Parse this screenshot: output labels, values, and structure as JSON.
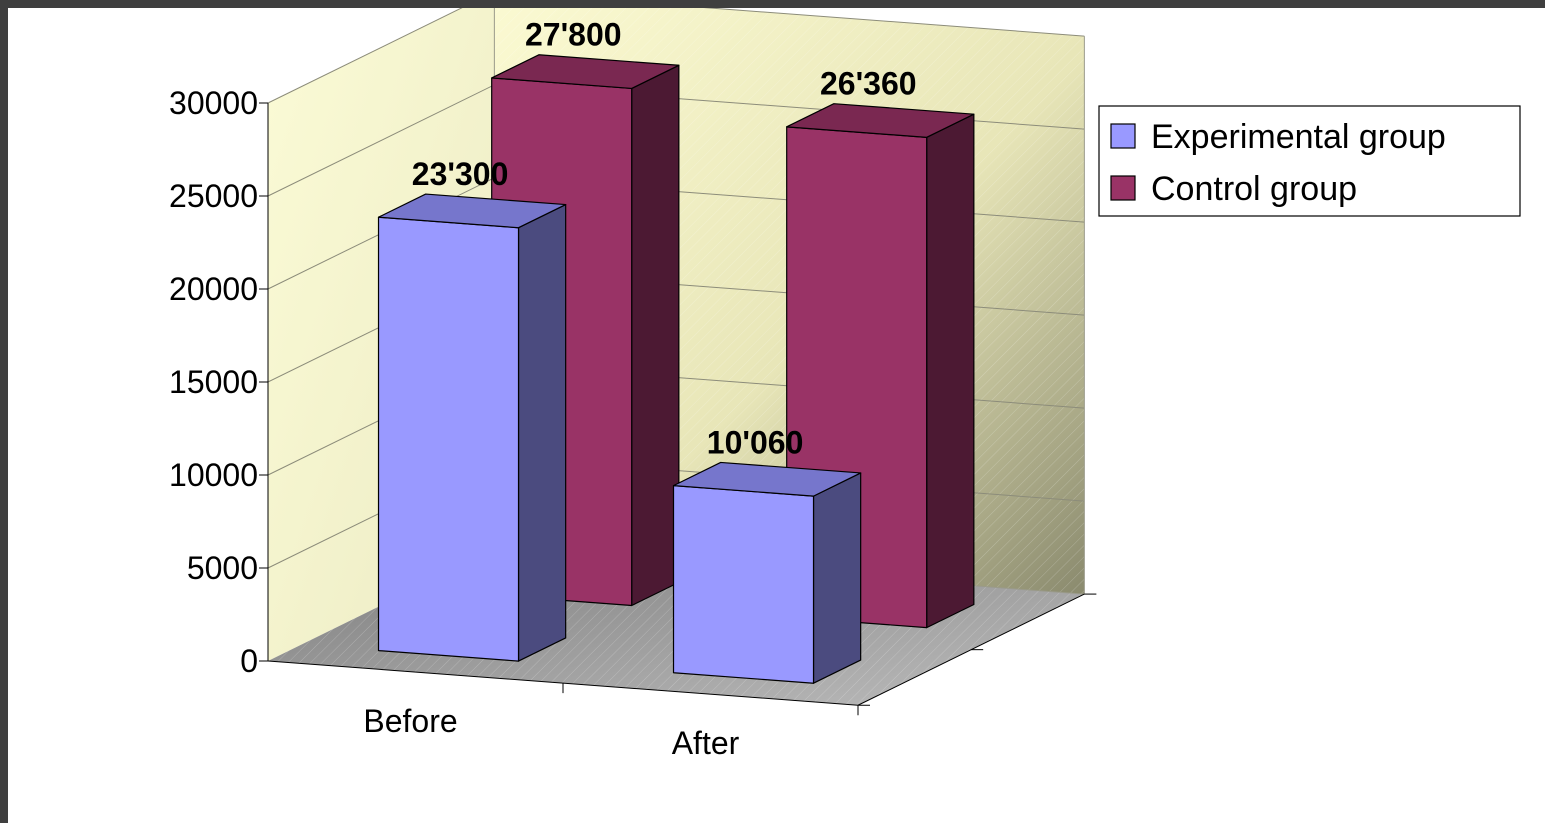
{
  "chart_data": {
    "type": "bar",
    "style": "3d-clustered-column",
    "categories": [
      "Before",
      "After"
    ],
    "series": [
      {
        "name": "Experimental group",
        "values": [
          23300,
          10060
        ],
        "labels": [
          "23'300",
          "10'060"
        ],
        "color": "#9999ff",
        "side_color": "#4b4b7f",
        "top_color": "#7676cc"
      },
      {
        "name": "Control group",
        "values": [
          27800,
          26360
        ],
        "labels": [
          "27'800",
          "26'360"
        ],
        "color": "#993366",
        "side_color": "#4c1933",
        "top_color": "#7a2851"
      }
    ],
    "y_ticks": [
      "0",
      "5000",
      "10000",
      "15000",
      "20000",
      "25000",
      "30000"
    ],
    "ylim": [
      0,
      30000
    ],
    "title": "",
    "xlabel": "",
    "ylabel": "",
    "grid": true,
    "legend_position": "right",
    "wall_color": "#f7f5c4",
    "floor_color": "#9a9a9a"
  }
}
